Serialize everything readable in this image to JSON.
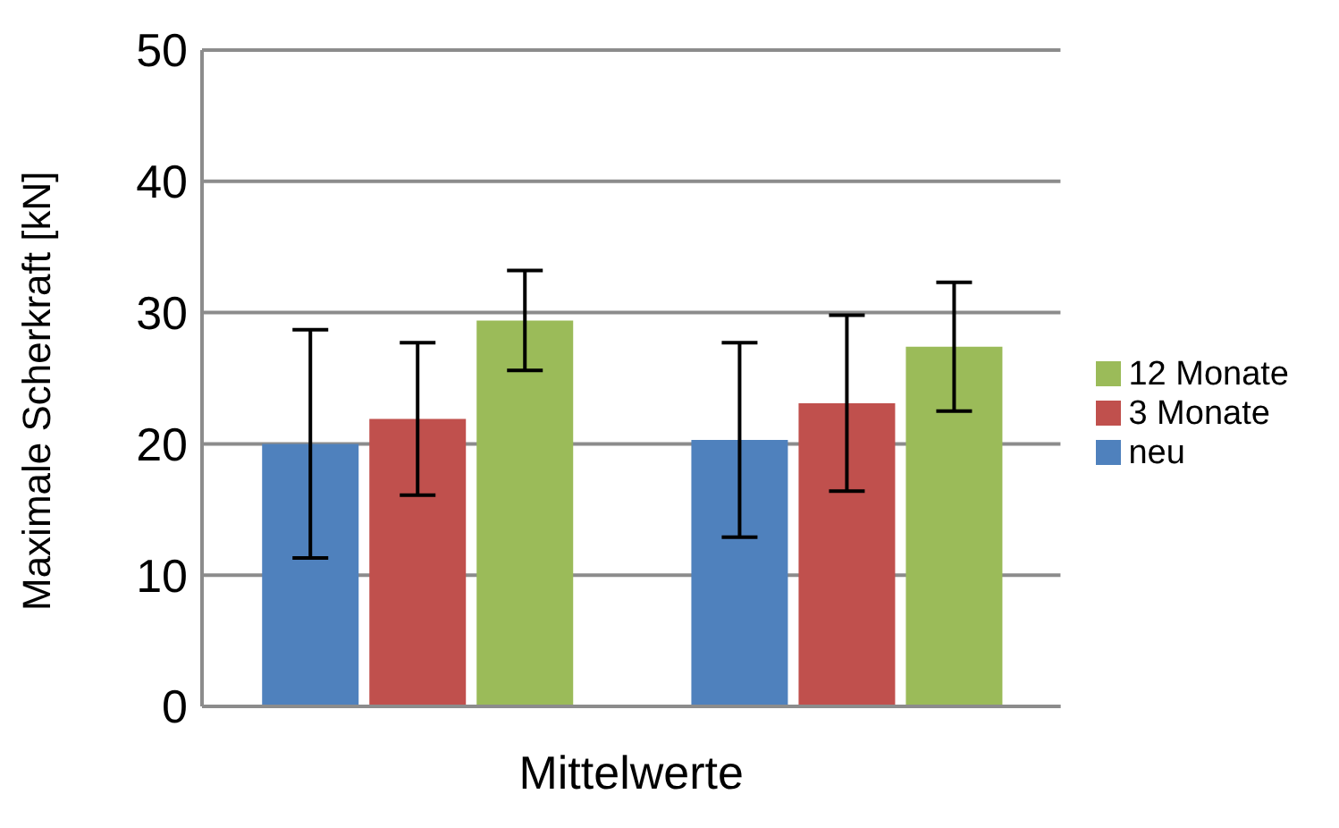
{
  "chart_data": {
    "type": "bar",
    "xlabel": "Mittelwerte",
    "ylabel": "Maximale Scherkraft [kN]",
    "categories": [
      null,
      null
    ],
    "series": [
      {
        "name": "neu",
        "color": "#4f81bd",
        "values": [
          20,
          20.3
        ],
        "errors": [
          8.7,
          7.4
        ]
      },
      {
        "name": "3 Monate",
        "color": "#c0504d",
        "values": [
          21.9,
          23.1
        ],
        "errors": [
          5.8,
          6.7
        ]
      },
      {
        "name": "12 Monate",
        "color": "#9bbb59",
        "values": [
          29.4,
          27.4
        ],
        "errors": [
          3.8,
          4.9
        ]
      }
    ],
    "ylim": [
      0,
      50
    ],
    "yticks": [
      0,
      10,
      20,
      30,
      40,
      50
    ],
    "grid": "y",
    "legend": "right"
  }
}
